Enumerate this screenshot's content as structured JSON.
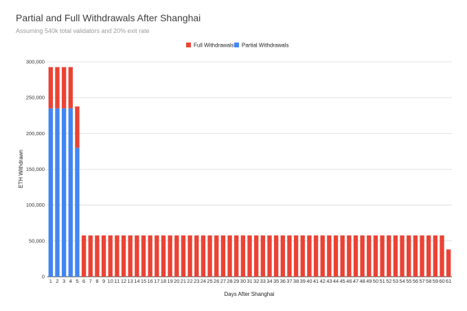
{
  "chart_data": {
    "type": "bar",
    "stacked": true,
    "title": "Partial and Full Withdrawals After Shanghai",
    "subtitle": "Assuming 540k total validators and 20% exit rate",
    "xlabel": "Days After Shanghai",
    "ylabel": "ETH Withdrawn",
    "ylim": [
      0,
      300000
    ],
    "yticks": [
      0,
      50000,
      100000,
      150000,
      200000,
      250000,
      300000
    ],
    "ytick_labels": [
      "0",
      "50,000",
      "100,000",
      "150,000",
      "200,000",
      "250,000",
      "300,000"
    ],
    "grid": true,
    "legend_position": "top-center",
    "categories": [
      "1",
      "2",
      "3",
      "4",
      "5",
      "6",
      "7",
      "8",
      "9",
      "10",
      "11",
      "12",
      "13",
      "14",
      "15",
      "16",
      "17",
      "18",
      "19",
      "20",
      "21",
      "22",
      "23",
      "24",
      "25",
      "26",
      "27",
      "28",
      "29",
      "30",
      "31",
      "32",
      "33",
      "34",
      "35",
      "36",
      "37",
      "38",
      "39",
      "40",
      "41",
      "42",
      "43",
      "44",
      "45",
      "46",
      "47",
      "48",
      "49",
      "50",
      "51",
      "52",
      "53",
      "54",
      "55",
      "56",
      "57",
      "58",
      "59",
      "60",
      "61"
    ],
    "series": [
      {
        "name": "Partial Withdrawals",
        "color": "#4285f4",
        "values": [
          235000,
          235000,
          235000,
          235000,
          180000,
          0,
          0,
          0,
          0,
          0,
          0,
          0,
          0,
          0,
          0,
          0,
          0,
          0,
          0,
          0,
          0,
          0,
          0,
          0,
          0,
          0,
          0,
          0,
          0,
          0,
          0,
          0,
          0,
          0,
          0,
          0,
          0,
          0,
          0,
          0,
          0,
          0,
          0,
          0,
          0,
          0,
          0,
          0,
          0,
          0,
          0,
          0,
          0,
          0,
          0,
          0,
          0,
          0,
          0,
          0,
          0
        ]
      },
      {
        "name": "Full Withdrawals",
        "color": "#ea4335",
        "values": [
          57600,
          57600,
          57600,
          57600,
          57600,
          57600,
          57600,
          57600,
          57600,
          57600,
          57600,
          57600,
          57600,
          57600,
          57600,
          57600,
          57600,
          57600,
          57600,
          57600,
          57600,
          57600,
          57600,
          57600,
          57600,
          57600,
          57600,
          57600,
          57600,
          57600,
          57600,
          57600,
          57600,
          57600,
          57600,
          57600,
          57600,
          57600,
          57600,
          57600,
          57600,
          57600,
          57600,
          57600,
          57600,
          57600,
          57600,
          57600,
          57600,
          57600,
          57600,
          57600,
          57600,
          57600,
          57600,
          57600,
          57600,
          57600,
          57600,
          57600,
          38000
        ]
      }
    ],
    "legend_order": [
      "Full Withdrawals",
      "Partial Withdrawals"
    ]
  }
}
